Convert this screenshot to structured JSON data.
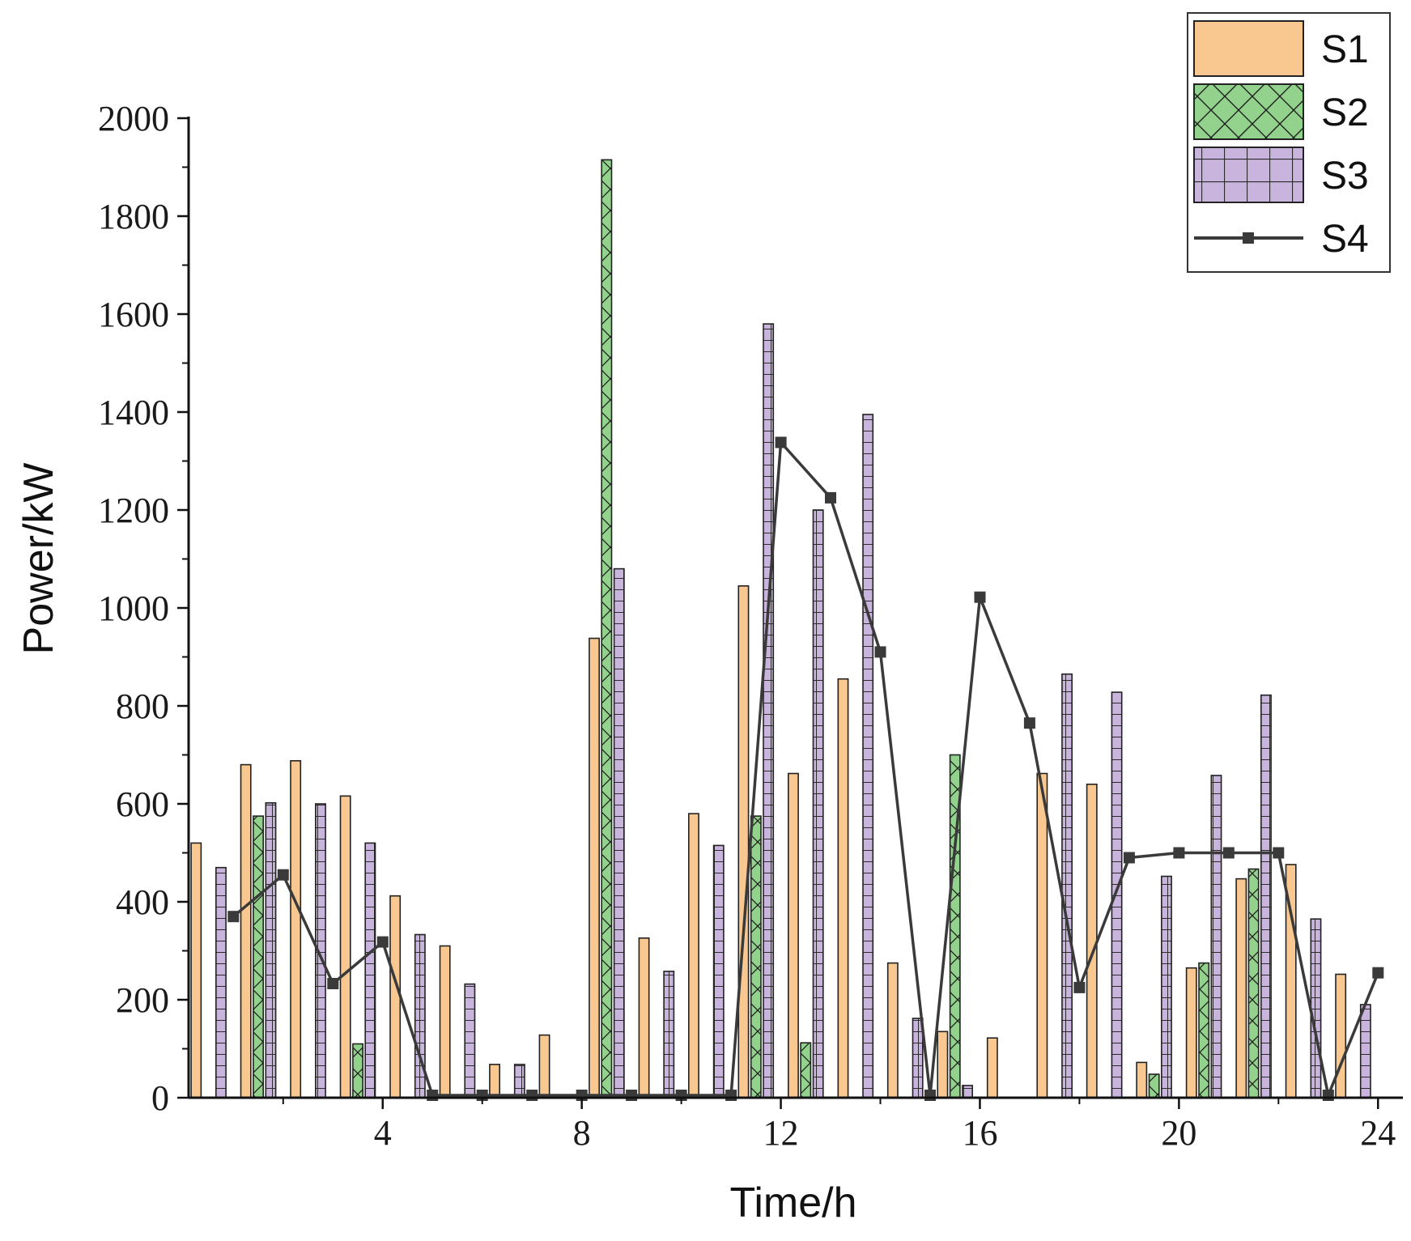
{
  "chart_data": {
    "type": "bar",
    "title": "",
    "xlabel": "Time/h",
    "ylabel": "Power/kW",
    "xlim": [
      0.1,
      24.5
    ],
    "ylim": [
      0,
      2000
    ],
    "x_ticks": [
      4,
      8,
      12,
      16,
      20,
      24
    ],
    "y_ticks": [
      0,
      200,
      400,
      600,
      800,
      1000,
      1200,
      1400,
      1600,
      1800,
      2000
    ],
    "grid": false,
    "legend_position": "top-right",
    "categories": [
      1,
      2,
      3,
      4,
      5,
      6,
      7,
      8,
      9,
      10,
      11,
      12,
      13,
      14,
      15,
      16,
      17,
      18,
      19,
      20,
      21,
      22,
      23,
      24
    ],
    "series": [
      {
        "name": "S1",
        "kind": "bar",
        "color": "#f9c890",
        "pattern": "none",
        "values": [
          520,
          680,
          688,
          616,
          412,
          310,
          68,
          128,
          938,
          326,
          580,
          1045,
          662,
          855,
          275,
          135,
          122,
          662,
          640,
          72,
          265,
          447,
          476,
          252
        ]
      },
      {
        "name": "S2",
        "kind": "bar",
        "color": "#92d28c",
        "pattern": "crosshatch",
        "values": [
          0,
          575,
          0,
          110,
          0,
          0,
          0,
          0,
          1915,
          0,
          0,
          575,
          112,
          0,
          0,
          700,
          0,
          0,
          0,
          48,
          275,
          467,
          0,
          0
        ]
      },
      {
        "name": "S3",
        "kind": "bar",
        "color": "#c8b4dc",
        "pattern": "grid",
        "values": [
          470,
          602,
          600,
          520,
          333,
          232,
          68,
          0,
          1080,
          258,
          515,
          1580,
          1200,
          1395,
          162,
          25,
          0,
          865,
          828,
          452,
          658,
          822,
          365,
          190
        ]
      },
      {
        "name": "S4",
        "kind": "line",
        "color": "#3a3a3a",
        "marker": "square",
        "values": [
          370,
          455,
          233,
          318,
          5,
          5,
          5,
          5,
          5,
          5,
          5,
          1338,
          1225,
          910,
          5,
          1022,
          765,
          225,
          490,
          500,
          500,
          500,
          5,
          255
        ]
      }
    ]
  }
}
